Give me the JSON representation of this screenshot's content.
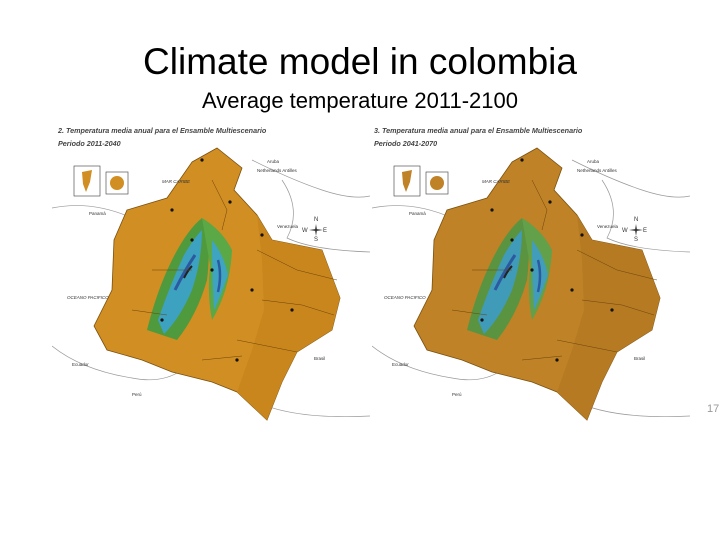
{
  "slide": {
    "title": "Climate model in colombia",
    "subtitle": "Average temperature 2011-2100",
    "page_number": "17"
  },
  "maps": [
    {
      "heading_line1": "2. Temperatura media anual para el Ensamble Multiescenario",
      "heading_line2": "Periodo 2011-2040",
      "labels": {
        "caribbean": "MAR CARIBE",
        "antilles": "Netherlands Antilles",
        "aruba": "Aruba",
        "panama": "Panamá",
        "venezuela": "Venezuela",
        "pacific": "OCEANO PACIFICO",
        "ecuador": "Ecuador",
        "peru": "Perú",
        "brazil": "Brasil"
      },
      "compass": {
        "n": "N",
        "s": "S",
        "e": "E",
        "w": "W"
      },
      "colors": {
        "land": "#d18e22",
        "east": "#c9861d",
        "andes_green": "#4f9a3c",
        "andes_blue": "#3aa3d6",
        "peak": "#2c5aa0"
      }
    },
    {
      "heading_line1": "3. Temperatura media anual para el Ensamble Multiescenario",
      "heading_line2": "Periodo 2041-2070",
      "labels": {
        "caribbean": "MAR CARIBE",
        "antilles": "Netherlands Antilles",
        "aruba": "Aruba",
        "panama": "Panamá",
        "venezuela": "Venezuela",
        "pacific": "OCEANO PACIFICO",
        "ecuador": "Ecuador",
        "peru": "Perú",
        "brazil": "Brasil"
      },
      "compass": {
        "n": "N",
        "s": "S",
        "e": "E",
        "w": "W"
      },
      "colors": {
        "land": "#bf8226",
        "east": "#b57a22",
        "andes_green": "#5a9440",
        "andes_blue": "#3c9ccf",
        "peak": "#2c5aa0"
      }
    }
  ]
}
